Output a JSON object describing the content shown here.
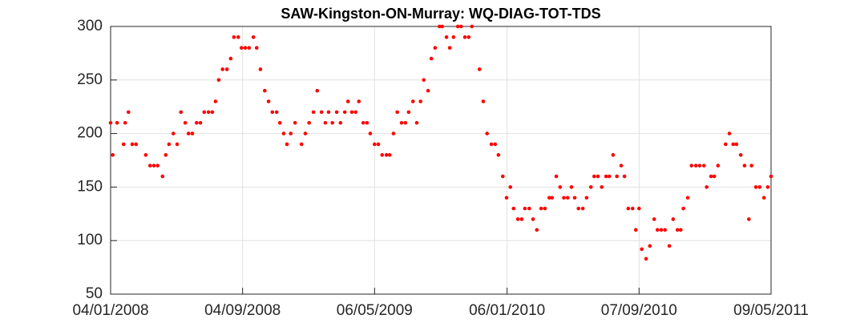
{
  "chart_data": {
    "type": "scatter",
    "title": "SAW-Kingston-ON-Murray: WQ-DIAG-TOT-TDS",
    "color": "#ff0000",
    "grid": true,
    "xlim": [
      "2008-01-04",
      "2011-05-09"
    ],
    "xticks": [
      {
        "value": "2008-01-04",
        "label": "04/01/2008"
      },
      {
        "value": "2008-09-04",
        "label": "04/09/2008"
      },
      {
        "value": "2009-05-06",
        "label": "06/05/2009"
      },
      {
        "value": "2010-01-06",
        "label": "06/01/2010"
      },
      {
        "value": "2010-09-07",
        "label": "07/09/2010"
      },
      {
        "value": "2011-05-09",
        "label": "09/05/2011"
      }
    ],
    "ylim": [
      50,
      300
    ],
    "yticks": [
      50,
      100,
      150,
      200,
      250,
      300
    ],
    "x": [
      "2008-01-04",
      "2008-01-08",
      "2008-01-16",
      "2008-01-28",
      "2008-01-31",
      "2008-02-06",
      "2008-02-13",
      "2008-02-20",
      "2008-03-09",
      "2008-03-17",
      "2008-03-24",
      "2008-03-31",
      "2008-04-09",
      "2008-04-15",
      "2008-04-21",
      "2008-04-29",
      "2008-05-06",
      "2008-05-13",
      "2008-05-21",
      "2008-05-27",
      "2008-06-03",
      "2008-06-11",
      "2008-06-18",
      "2008-06-25",
      "2008-07-03",
      "2008-07-10",
      "2008-07-16",
      "2008-07-22",
      "2008-07-29",
      "2008-08-06",
      "2008-08-13",
      "2008-08-19",
      "2008-08-27",
      "2008-09-02",
      "2008-09-09",
      "2008-09-16",
      "2008-09-24",
      "2008-09-30",
      "2008-10-07",
      "2008-10-15",
      "2008-10-22",
      "2008-10-29",
      "2008-11-06",
      "2008-11-12",
      "2008-11-19",
      "2008-11-25",
      "2008-12-02",
      "2008-12-10",
      "2008-12-22",
      "2008-12-29",
      "2009-01-05",
      "2009-01-13",
      "2009-01-20",
      "2009-01-28",
      "2009-02-04",
      "2009-02-10",
      "2009-02-17",
      "2009-02-25",
      "2009-03-04",
      "2009-03-12",
      "2009-03-18",
      "2009-03-25",
      "2009-04-01",
      "2009-04-07",
      "2009-04-15",
      "2009-04-22",
      "2009-04-28",
      "2009-05-06",
      "2009-05-13",
      "2009-05-20",
      "2009-05-28",
      "2009-06-03",
      "2009-06-10",
      "2009-06-17",
      "2009-06-25",
      "2009-07-02",
      "2009-07-08",
      "2009-07-16",
      "2009-07-23",
      "2009-07-30",
      "2009-08-05",
      "2009-08-13",
      "2009-08-19",
      "2009-08-26",
      "2009-09-03",
      "2009-09-08",
      "2009-09-16",
      "2009-09-22",
      "2009-09-29",
      "2009-10-07",
      "2009-10-13",
      "2009-10-20",
      "2009-10-27",
      "2009-11-02",
      "2009-11-16",
      "2009-11-23",
      "2009-11-30",
      "2009-12-08",
      "2009-12-15",
      "2009-12-21",
      "2009-12-29",
      "2010-01-05",
      "2010-01-12",
      "2010-01-18",
      "2010-01-26",
      "2010-02-02",
      "2010-02-08",
      "2010-02-16",
      "2010-02-23",
      "2010-03-02",
      "2010-03-10",
      "2010-03-17",
      "2010-03-25",
      "2010-03-30",
      "2010-04-07",
      "2010-04-14",
      "2010-04-21",
      "2010-04-28",
      "2010-05-05",
      "2010-05-11",
      "2010-05-18",
      "2010-05-26",
      "2010-06-02",
      "2010-06-10",
      "2010-06-16",
      "2010-06-23",
      "2010-06-30",
      "2010-07-08",
      "2010-07-14",
      "2010-07-21",
      "2010-07-28",
      "2010-08-05",
      "2010-08-11",
      "2010-08-18",
      "2010-08-26",
      "2010-09-01",
      "2010-09-07",
      "2010-09-12",
      "2010-09-20",
      "2010-09-27",
      "2010-10-05",
      "2010-10-11",
      "2010-10-18",
      "2010-10-25",
      "2010-11-02",
      "2010-11-09",
      "2010-11-17",
      "2010-11-23",
      "2010-11-28",
      "2010-12-06",
      "2010-12-13",
      "2010-12-21",
      "2010-12-28",
      "2011-01-05",
      "2011-01-10",
      "2011-01-18",
      "2011-01-24",
      "2011-01-31",
      "2011-02-14",
      "2011-02-21",
      "2011-02-28",
      "2011-03-06",
      "2011-03-14",
      "2011-03-21",
      "2011-03-29",
      "2011-04-03",
      "2011-04-11",
      "2011-04-18",
      "2011-04-26",
      "2011-05-03",
      "2011-05-09"
    ],
    "values": [
      210,
      180,
      210,
      190,
      210,
      220,
      190,
      190,
      180,
      170,
      170,
      170,
      160,
      180,
      190,
      200,
      190,
      220,
      210,
      200,
      200,
      210,
      210,
      220,
      220,
      220,
      230,
      250,
      260,
      260,
      270,
      290,
      290,
      280,
      280,
      280,
      290,
      280,
      260,
      240,
      230,
      220,
      220,
      210,
      200,
      190,
      200,
      210,
      190,
      200,
      210,
      220,
      240,
      220,
      210,
      220,
      210,
      220,
      210,
      220,
      230,
      220,
      220,
      230,
      210,
      210,
      200,
      190,
      190,
      180,
      180,
      180,
      200,
      220,
      210,
      210,
      220,
      230,
      210,
      230,
      250,
      240,
      270,
      280,
      300,
      300,
      290,
      280,
      290,
      300,
      300,
      290,
      290,
      300,
      260,
      230,
      200,
      190,
      190,
      180,
      160,
      140,
      150,
      130,
      120,
      120,
      130,
      130,
      120,
      110,
      130,
      130,
      140,
      140,
      160,
      150,
      140,
      140,
      150,
      140,
      130,
      130,
      140,
      150,
      160,
      160,
      150,
      160,
      160,
      180,
      160,
      170,
      160,
      130,
      130,
      110,
      130,
      92,
      83,
      95,
      120,
      110,
      110,
      110,
      95,
      120,
      110,
      110,
      130,
      140,
      170,
      170,
      170,
      170,
      150,
      160,
      160,
      170,
      190,
      200,
      190,
      190,
      180,
      170,
      120,
      170,
      150,
      150,
      140,
      150,
      160
    ]
  }
}
